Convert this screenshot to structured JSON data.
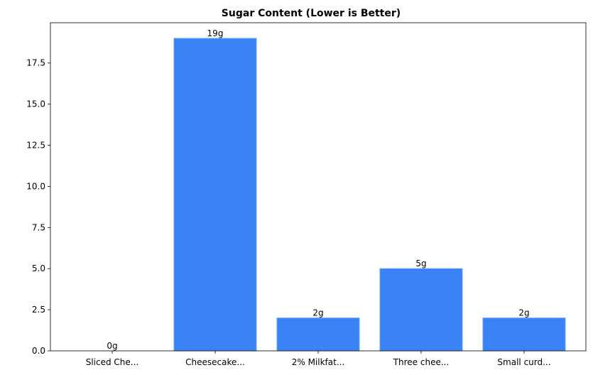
{
  "chart_data": {
    "type": "bar",
    "title": "Sugar Content (Lower is Better)",
    "xlabel": "",
    "ylabel": "",
    "categories": [
      "Sliced Che...",
      "Cheesecake...",
      "2% Milkfat...",
      "Three chee...",
      "Small curd..."
    ],
    "values": [
      0,
      19,
      2,
      5,
      2
    ],
    "data_labels": [
      "0g",
      "19g",
      "2g",
      "5g",
      "2g"
    ],
    "ylim": [
      0,
      19.95
    ],
    "yticks": [
      0,
      2.5,
      5,
      7.5,
      10,
      12.5,
      15,
      17.5
    ],
    "ytick_labels": [
      "0.0",
      "2.5",
      "5.0",
      "7.5",
      "10.0",
      "12.5",
      "15.0",
      "17.5"
    ],
    "grid": false,
    "colors": {
      "bar": "#3b82f6",
      "bar_edge": "#60a5fa",
      "axis": "#000000"
    }
  }
}
